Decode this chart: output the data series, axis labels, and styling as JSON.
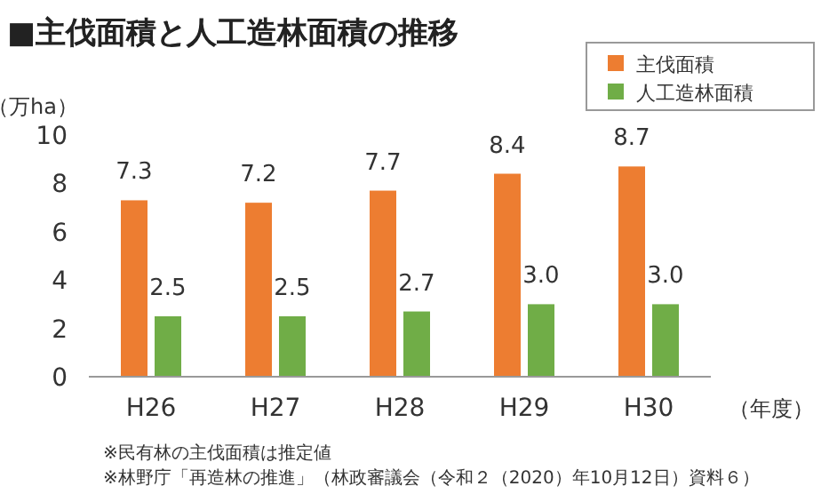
{
  "chart_data": {
    "type": "bar",
    "title": "■主伐面積と人工造林面積の推移",
    "ylabel": "（万ha）",
    "xlabel": "（年度）",
    "categories": [
      "H26",
      "H27",
      "H28",
      "H29",
      "H30"
    ],
    "series": [
      {
        "name": "主伐面積",
        "color": "#ed7d31",
        "values": [
          7.3,
          7.2,
          7.7,
          8.4,
          8.7
        ],
        "value_labels": [
          "7.3",
          "7.2",
          "7.7",
          "8.4",
          "8.7"
        ]
      },
      {
        "name": "人工造林面積",
        "color": "#70ad47",
        "values": [
          2.5,
          2.5,
          2.7,
          3.0,
          3.0
        ],
        "value_labels": [
          "2.5",
          "2.5",
          "2.7",
          "3.0",
          "3.0"
        ]
      }
    ],
    "ylim": [
      0,
      10
    ],
    "yticks": [
      0,
      2,
      4,
      6,
      8,
      10
    ],
    "grid": false,
    "legend": "top right",
    "annotations": [
      "※民有林の主伐面積は推定値",
      "※林野庁「再造林の推進」（林政審議会（令和２（2020）年10月12日）資料６）"
    ]
  }
}
